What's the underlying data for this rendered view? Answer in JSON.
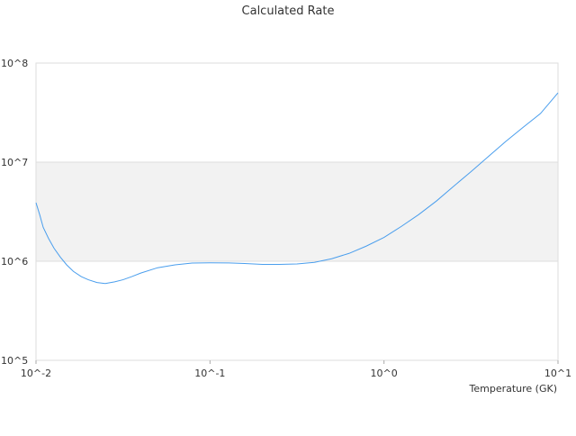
{
  "chart_data": {
    "type": "line",
    "title": "Calculated Rate",
    "xlabel": "Temperature (GK)",
    "ylabel": "",
    "xscale": "log",
    "yscale": "log",
    "xlim": [
      0.01,
      10
    ],
    "ylim": [
      100000,
      100000000
    ],
    "grid": true,
    "x_ticks": [
      {
        "value": 0.01,
        "label": "10^-2"
      },
      {
        "value": 0.1,
        "label": "10^-1"
      },
      {
        "value": 1,
        "label": "10^0"
      },
      {
        "value": 10,
        "label": "10^1"
      }
    ],
    "y_ticks": [
      {
        "value": 100000,
        "label": "10^5"
      },
      {
        "value": 1000000,
        "label": "10^6"
      },
      {
        "value": 10000000,
        "label": "10^7"
      },
      {
        "value": 100000000,
        "label": "10^8"
      }
    ],
    "shaded_band": {
      "y_range": [
        1000000,
        10000000
      ],
      "color": "#f2f2f2"
    },
    "series": [
      {
        "color": "#4a9eed",
        "x": [
          0.01,
          0.0105,
          0.011,
          0.0118,
          0.0127,
          0.0138,
          0.015,
          0.0164,
          0.0182,
          0.02,
          0.0224,
          0.025,
          0.0283,
          0.0316,
          0.0355,
          0.04,
          0.05,
          0.063,
          0.079,
          0.1,
          0.126,
          0.158,
          0.2,
          0.25,
          0.316,
          0.398,
          0.5,
          0.63,
          0.79,
          1.0,
          1.26,
          1.58,
          2.0,
          2.51,
          3.16,
          3.98,
          5.01,
          6.31,
          7.94,
          10.0
        ],
        "y": [
          3900000,
          2950000,
          2200000,
          1700000,
          1350000,
          1100000,
          920000,
          790000,
          700000,
          650000,
          610000,
          595000,
          620000,
          650000,
          700000,
          760000,
          860000,
          920000,
          960000,
          965000,
          962000,
          950000,
          930000,
          930000,
          940000,
          975000,
          1060000,
          1200000,
          1420000,
          1740000,
          2250000,
          2950000,
          4050000,
          5700000,
          8000000,
          11400000,
          16200000,
          22500000,
          31000000,
          50000000
        ]
      }
    ]
  }
}
